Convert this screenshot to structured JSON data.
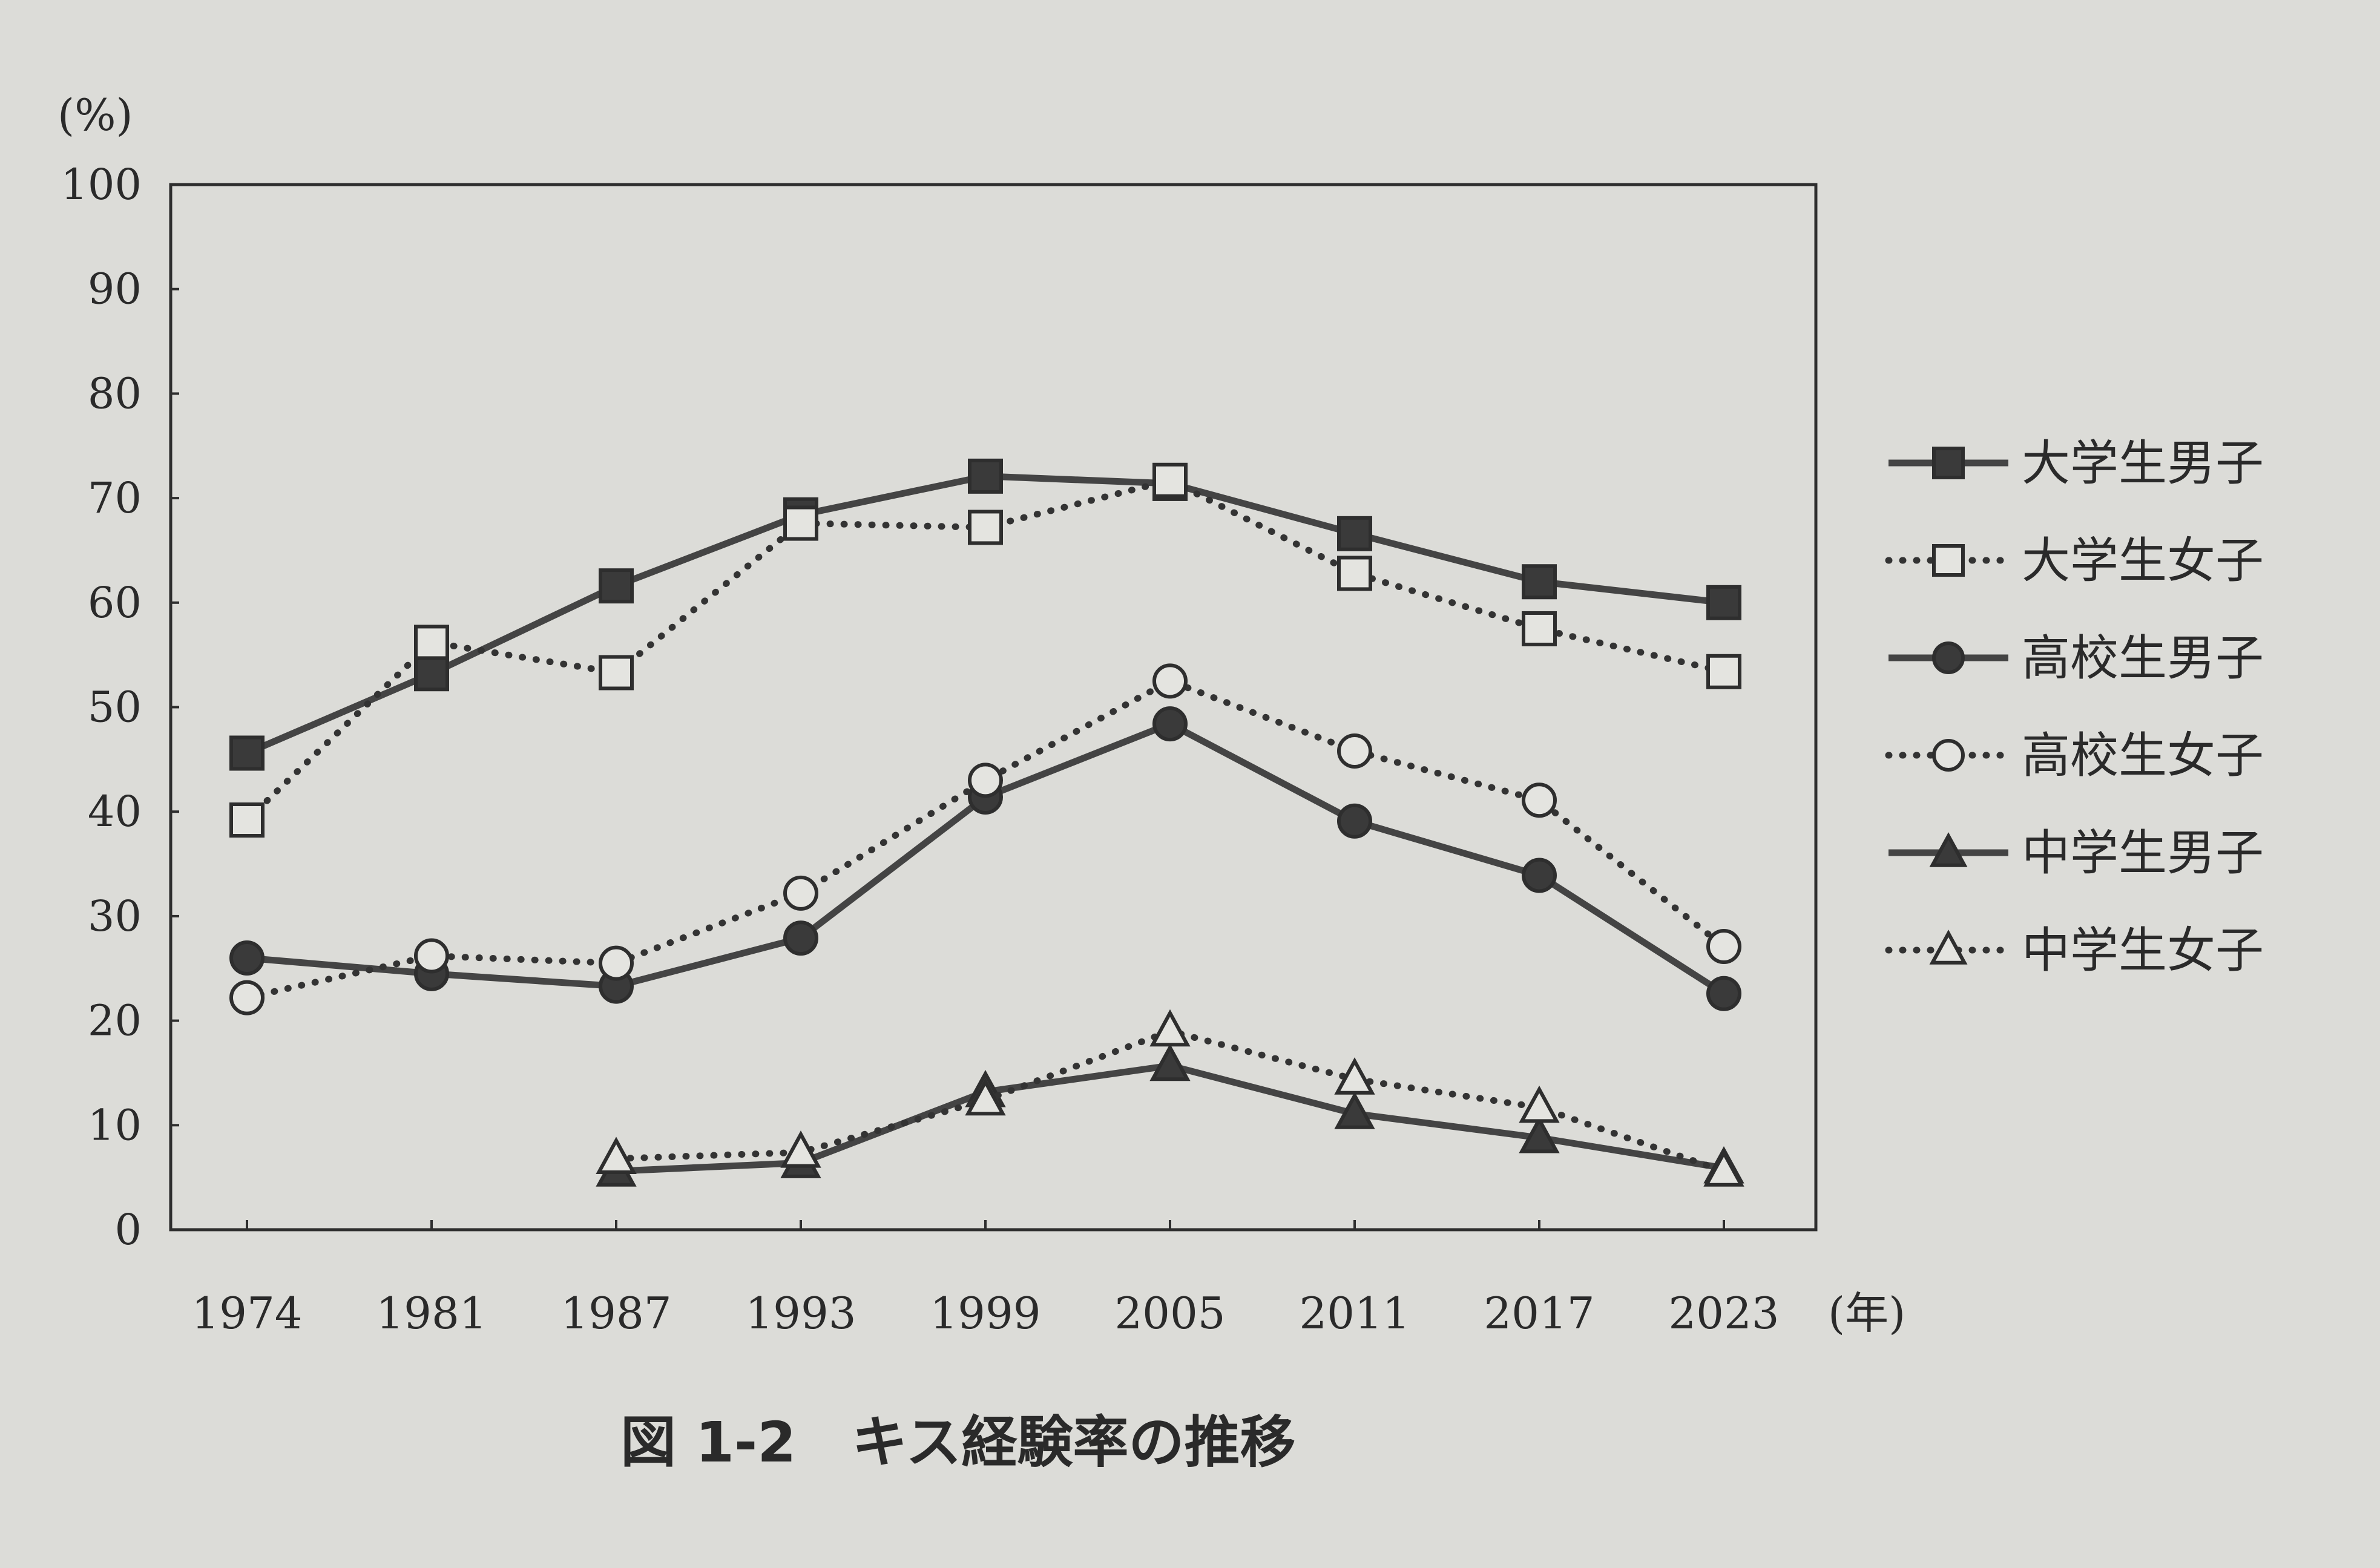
{
  "chart_data": {
    "type": "line",
    "title": "",
    "caption": "図 1-2　キス経験率の推移",
    "ylabel": "(%)",
    "xlabel": "(年)",
    "ylim": [
      0,
      100
    ],
    "yticks": [
      0,
      10,
      20,
      30,
      40,
      50,
      60,
      70,
      80,
      90,
      100
    ],
    "x": [
      "1974",
      "1981",
      "1987",
      "1993",
      "1999",
      "2005",
      "2011",
      "2017",
      "2023"
    ],
    "grid": false,
    "legend_position": "right",
    "series": [
      {
        "name": "大学生男子",
        "marker": "square-filled",
        "line": "solid",
        "values": [
          45.6,
          53.2,
          61.6,
          68.4,
          72.1,
          71.4,
          66.6,
          62.0,
          60.0
        ]
      },
      {
        "name": "大学生女子",
        "marker": "square-open",
        "line": "dotted",
        "values": [
          39.2,
          56.2,
          53.3,
          67.6,
          67.2,
          71.7,
          62.8,
          57.5,
          53.4
        ]
      },
      {
        "name": "高校生男子",
        "marker": "circle-filled",
        "line": "solid",
        "values": [
          26.0,
          24.5,
          23.3,
          27.9,
          41.4,
          48.4,
          39.1,
          33.9,
          22.6
        ]
      },
      {
        "name": "高校生女子",
        "marker": "circle-open",
        "line": "dotted",
        "values": [
          22.2,
          26.2,
          25.5,
          32.2,
          43.0,
          52.5,
          45.8,
          41.1,
          27.1
        ]
      },
      {
        "name": "中学生男子",
        "marker": "triangle-filled",
        "line": "solid",
        "values": [
          null,
          null,
          5.6,
          6.4,
          13.2,
          15.7,
          11.1,
          8.8,
          5.9
        ]
      },
      {
        "name": "中学生女子",
        "marker": "triangle-open",
        "line": "dotted",
        "values": [
          null,
          null,
          6.8,
          7.4,
          12.4,
          19.0,
          14.4,
          11.7,
          5.6
        ]
      }
    ]
  }
}
